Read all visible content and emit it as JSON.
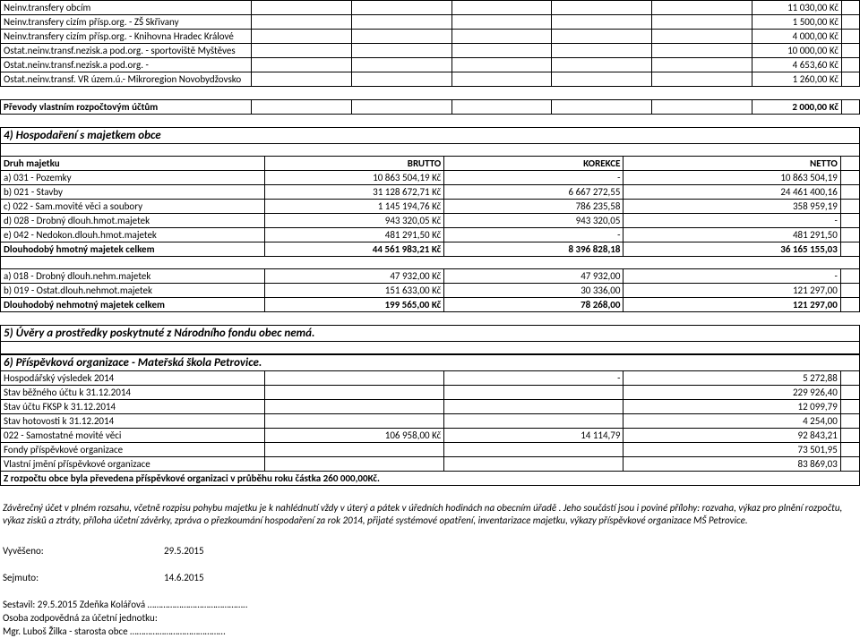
{
  "transfers": {
    "rows": [
      {
        "label": "Neinv.transfery obcím",
        "amount": "11 030,00 Kč"
      },
      {
        "label": "Neinv.transfery cizím přísp.org. - ZŠ Skřivany",
        "amount": "1 500,00 Kč"
      },
      {
        "label": "Neinv.transfery cizím přísp.org. - Knihovna Hradec Králové",
        "amount": "4 000,00 Kč"
      },
      {
        "label": "Ostat.neinv.transf.nezisk.a pod.org. - sportoviště Myštěves",
        "amount": "10 000,00 Kč"
      },
      {
        "label": "Ostat.neinv.transf.nezisk.a pod.org. -",
        "amount": "4 653,60 Kč"
      },
      {
        "label": "Ostat.neinv.transf. VR územ.ú.- Mikroregion Novobydžovsko",
        "amount": "1 260,00 Kč"
      }
    ]
  },
  "prevody": {
    "label": "Převody vlastním rozpočtovým účtům",
    "amount": "2 000,00 Kč"
  },
  "section4": {
    "title": "4) Hospodaření s majetkem obce",
    "head": {
      "c1": "Druh majetku",
      "c2": "BRUTTO",
      "c3": "KOREKCE",
      "c4": "NETTO"
    },
    "rows": [
      {
        "label": "a) 031 - Pozemky",
        "brutto": "10 863 504,19 Kč",
        "korekce": "-",
        "netto": "10 863 504,19"
      },
      {
        "label": "b) 021 - Stavby",
        "brutto": "31 128 672,71 Kč",
        "korekce": "6 667 272,55",
        "netto": "24 461 400,16"
      },
      {
        "label": "c) 022 - Sam.movité věci a soubory",
        "brutto": "1 145 194,76 Kč",
        "korekce": "786 235,58",
        "netto": "358 959,19"
      },
      {
        "label": "d) 028 - Drobný dlouh.hmot.majetek",
        "brutto": "943 320,05 Kč",
        "korekce": "943 320,05",
        "netto": "-"
      },
      {
        "label": "e) 042 - Nedokon.dlouh.hmot.majetek",
        "brutto": "481 291,50 Kč",
        "korekce": "-",
        "netto": "481 291,50"
      }
    ],
    "total_hmot": {
      "label": "Dlouhodobý hmotný majetek celkem",
      "brutto": "44 561 983,21 Kč",
      "korekce": "8 396 828,18",
      "netto": "36 165 155,03"
    },
    "rows2": [
      {
        "label": "a) 018 - Drobný dlouh.nehm.majetek",
        "brutto": "47 932,00 Kč",
        "korekce": "47 932,00",
        "netto": "-"
      },
      {
        "label": "b)  019 - Ostat.dlouh.nehmot.majetek",
        "brutto": "151 633,00 Kč",
        "korekce": "30 336,00",
        "netto": "121 297,00"
      }
    ],
    "total_nehmot": {
      "label": "Dlouhodobý nehmotný majetek celkem",
      "brutto": "199 565,00 Kč",
      "korekce": "78 268,00",
      "netto": "121 297,00"
    }
  },
  "section5": {
    "title": "5)  Úvěry a prostředky poskytnuté z Národního fondu  obec nemá."
  },
  "section6": {
    "title": "6)  Příspěvková organizace - Mateřská škola Petrovice.",
    "rows": [
      {
        "label": "Hospodářský výsledek 2014",
        "mid": "",
        "kor": "-",
        "amt": "5 272,88"
      },
      {
        "label": "Stav běžného účtu k 31.12.2014",
        "mid": "",
        "kor": "",
        "amt": "229 926,40"
      },
      {
        "label": "Stav účtu FKSP k 31.12.2014",
        "mid": "",
        "kor": "",
        "amt": "12 099,79"
      },
      {
        "label": "Stav hotovosti k 31.12.2014",
        "mid": "",
        "kor": "",
        "amt": "4 254,00"
      },
      {
        "label": "022 - Samostatné movité věci",
        "mid": "106 958,00 Kč",
        "kor": "14 114,79",
        "amt": "92 843,21"
      },
      {
        "label": "Fondy příspěvkové organizace",
        "mid": "",
        "kor": "",
        "amt": "73 501,95"
      },
      {
        "label": "Vlastní jmění příspěvkové organizace",
        "mid": "",
        "kor": "",
        "amt": "83 869,03"
      }
    ],
    "note": "Z rozpočtu obce byla převedena příspěvkové organizaci v průběhu roku částka 260 000,00Kč."
  },
  "footer": {
    "para": "Závěrečný účet v plném rozsahu, včetně  rozpisu pohybu majetku je k nahlédnutí vždy v úterý a pátek v úředních hodinách na obecním úřadě . Jeho součástí jsou i poviné přílohy: rozvaha, výkaz pro plnění rozpočtu, výkaz zisků a ztráty, příloha účetní závěrky, zpráva o přezkoumání hospodaření za rok 2014, přijaté systémové opatření, inventarizace majetku, výkazy příspěvkové organizace MŠ Petrovice.",
    "vyveseno_lbl": "Vyvěšeno:",
    "vyveseno_date": "29.5.2015",
    "sejmuto_lbl": "Sejmuto:",
    "sejmuto_date": "14.6.2015",
    "sestavil": "Sestavil: 29.5.2015 Zdeňka Kolářová ……………………………………..",
    "osoba": "Osoba zodpovědná za účetní jednotku:",
    "starosta": "Mgr. Luboš Žilka - starosta obce ……………………………………"
  }
}
